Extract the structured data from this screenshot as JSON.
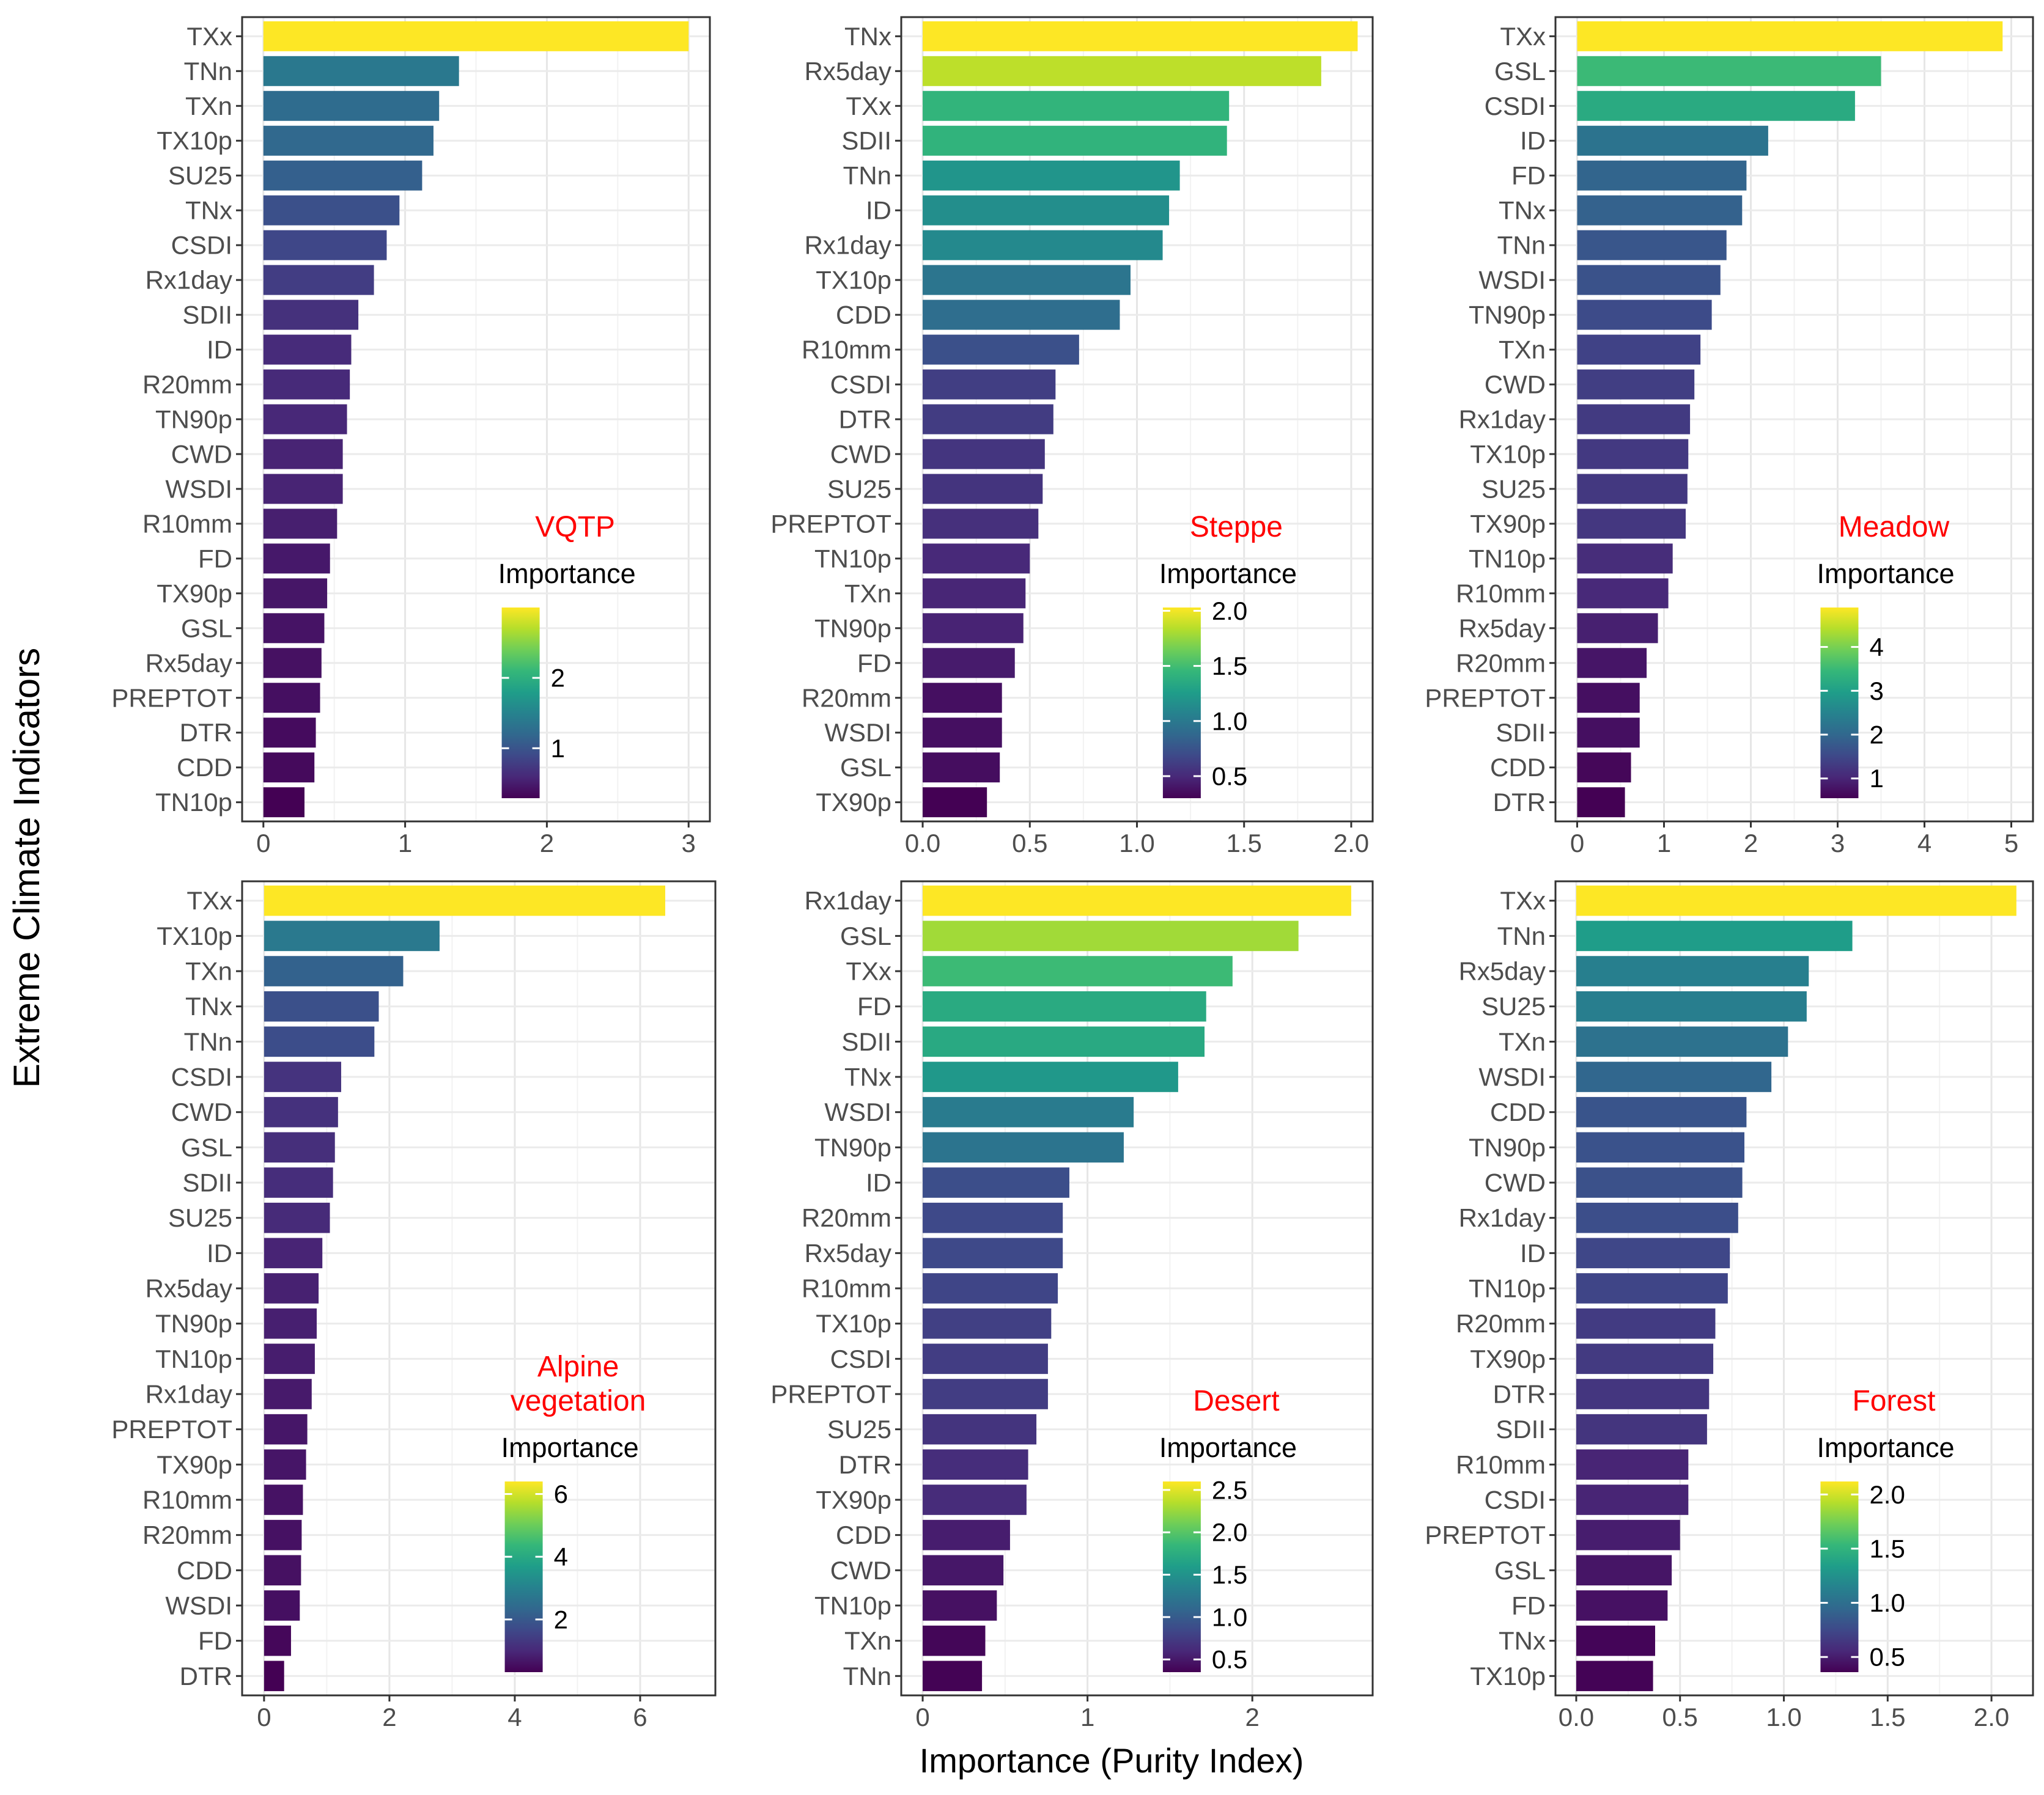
{
  "figure": {
    "y_axis_title": "Extreme Climate Indicators",
    "x_axis_title": "Importance (Purity Index)"
  },
  "chart_data": [
    {
      "type": "bar",
      "orientation": "horizontal",
      "panel_title": [
        "VQTP"
      ],
      "legend_title": "Importance",
      "xlim": [
        -0.15,
        3.15
      ],
      "x_ticks": [
        0,
        1,
        2,
        3
      ],
      "x_tick_labels": [
        "0",
        "1",
        "2",
        "3"
      ],
      "color_range": [
        0.29,
        3.0
      ],
      "color_ticks": [
        1,
        2
      ],
      "color_tick_labels": [
        "1",
        "2"
      ],
      "categories": [
        "TXx",
        "TNn",
        "TXn",
        "TX10p",
        "SU25",
        "TNx",
        "CSDI",
        "Rx1day",
        "SDII",
        "ID",
        "R20mm",
        "TN90p",
        "CWD",
        "WSDI",
        "R10mm",
        "FD",
        "TX90p",
        "GSL",
        "Rx5day",
        "PREPTOT",
        "DTR",
        "CDD",
        "TN10p"
      ],
      "values": [
        3.0,
        1.38,
        1.24,
        1.2,
        1.12,
        0.96,
        0.87,
        0.78,
        0.67,
        0.62,
        0.61,
        0.59,
        0.56,
        0.56,
        0.52,
        0.47,
        0.45,
        0.43,
        0.41,
        0.4,
        0.37,
        0.36,
        0.29
      ]
    },
    {
      "type": "bar",
      "orientation": "horizontal",
      "panel_title": [
        "Steppe"
      ],
      "legend_title": "Importance",
      "xlim": [
        -0.1,
        2.1
      ],
      "x_ticks": [
        0,
        0.5,
        1.0,
        1.5,
        2.0
      ],
      "x_tick_labels": [
        "0.0",
        "0.5",
        "1.0",
        "1.5",
        "2.0"
      ],
      "color_range": [
        0.3,
        2.03
      ],
      "color_ticks": [
        0.5,
        1.0,
        1.5,
        2.0
      ],
      "color_tick_labels": [
        "0.5",
        "1.0",
        "1.5",
        "2.0"
      ],
      "categories": [
        "TNx",
        "Rx5day",
        "TXx",
        "SDII",
        "TNn",
        "ID",
        "Rx1day",
        "TX10p",
        "CDD",
        "R10mm",
        "CSDI",
        "DTR",
        "CWD",
        "SU25",
        "PREPTOT",
        "TN10p",
        "TXn",
        "TN90p",
        "FD",
        "R20mm",
        "WSDI",
        "GSL",
        "TX90p"
      ],
      "values": [
        2.03,
        1.86,
        1.43,
        1.42,
        1.2,
        1.15,
        1.12,
        0.97,
        0.92,
        0.73,
        0.62,
        0.61,
        0.57,
        0.56,
        0.54,
        0.5,
        0.48,
        0.47,
        0.43,
        0.37,
        0.37,
        0.36,
        0.3
      ]
    },
    {
      "type": "bar",
      "orientation": "horizontal",
      "panel_title": [
        "Meadow"
      ],
      "legend_title": "Importance",
      "xlim": [
        -0.25,
        5.25
      ],
      "x_ticks": [
        0,
        1,
        2,
        3,
        4,
        5
      ],
      "x_tick_labels": [
        "0",
        "1",
        "2",
        "3",
        "4",
        "5"
      ],
      "color_range": [
        0.55,
        4.9
      ],
      "color_ticks": [
        1,
        2,
        3,
        4
      ],
      "color_tick_labels": [
        "1",
        "2",
        "3",
        "4"
      ],
      "categories": [
        "TXx",
        "GSL",
        "CSDI",
        "ID",
        "FD",
        "TNx",
        "TNn",
        "WSDI",
        "TN90p",
        "TXn",
        "CWD",
        "Rx1day",
        "TX10p",
        "SU25",
        "TX90p",
        "TN10p",
        "R10mm",
        "Rx5day",
        "R20mm",
        "PREPTOT",
        "SDII",
        "CDD",
        "DTR"
      ],
      "values": [
        4.9,
        3.5,
        3.2,
        2.2,
        1.95,
        1.9,
        1.72,
        1.65,
        1.55,
        1.42,
        1.35,
        1.3,
        1.28,
        1.27,
        1.25,
        1.1,
        1.05,
        0.93,
        0.8,
        0.72,
        0.72,
        0.62,
        0.55
      ]
    },
    {
      "type": "bar",
      "orientation": "horizontal",
      "panel_title": [
        "Alpine",
        "vegetation"
      ],
      "legend_title": "Importance",
      "xlim": [
        -0.35,
        7.2
      ],
      "x_ticks": [
        0,
        2,
        4,
        6
      ],
      "x_tick_labels": [
        "0",
        "2",
        "4",
        "6"
      ],
      "color_range": [
        0.32,
        6.4
      ],
      "color_ticks": [
        2,
        4,
        6
      ],
      "color_tick_labels": [
        "2",
        "4",
        "6"
      ],
      "categories": [
        "TXx",
        "TX10p",
        "TXn",
        "TNx",
        "TNn",
        "CSDI",
        "CWD",
        "GSL",
        "SDII",
        "SU25",
        "ID",
        "Rx5day",
        "TN90p",
        "TN10p",
        "Rx1day",
        "PREPTOT",
        "TX90p",
        "R10mm",
        "R20mm",
        "CDD",
        "WSDI",
        "FD",
        "DTR"
      ],
      "values": [
        6.4,
        2.8,
        2.22,
        1.83,
        1.76,
        1.23,
        1.18,
        1.13,
        1.1,
        1.05,
        0.93,
        0.87,
        0.84,
        0.81,
        0.76,
        0.69,
        0.67,
        0.62,
        0.6,
        0.59,
        0.57,
        0.43,
        0.32
      ]
    },
    {
      "type": "bar",
      "orientation": "horizontal",
      "panel_title": [
        "Desert"
      ],
      "legend_title": "Importance",
      "xlim": [
        -0.13,
        2.73
      ],
      "x_ticks": [
        0,
        1,
        2
      ],
      "x_tick_labels": [
        "0",
        "1",
        "2"
      ],
      "color_range": [
        0.35,
        2.6
      ],
      "color_ticks": [
        0.5,
        1.0,
        1.5,
        2.0,
        2.5
      ],
      "color_tick_labels": [
        "0.5",
        "1.0",
        "1.5",
        "2.0",
        "2.5"
      ],
      "categories": [
        "Rx1day",
        "GSL",
        "TXx",
        "FD",
        "SDII",
        "TNx",
        "WSDI",
        "TN90p",
        "ID",
        "R20mm",
        "Rx5day",
        "R10mm",
        "TX10p",
        "CSDI",
        "PREPTOT",
        "SU25",
        "DTR",
        "TX90p",
        "CDD",
        "CWD",
        "TN10p",
        "TXn",
        "TNn"
      ],
      "values": [
        2.6,
        2.28,
        1.88,
        1.72,
        1.71,
        1.55,
        1.28,
        1.22,
        0.89,
        0.85,
        0.85,
        0.82,
        0.78,
        0.76,
        0.76,
        0.69,
        0.64,
        0.63,
        0.53,
        0.49,
        0.45,
        0.38,
        0.36
      ]
    },
    {
      "type": "bar",
      "orientation": "horizontal",
      "panel_title": [
        "Forest"
      ],
      "legend_title": "Importance",
      "xlim": [
        -0.1,
        2.2
      ],
      "x_ticks": [
        0,
        0.5,
        1.0,
        1.5,
        2.0
      ],
      "x_tick_labels": [
        "0.0",
        "0.5",
        "1.0",
        "1.5",
        "2.0"
      ],
      "color_range": [
        0.36,
        2.12
      ],
      "color_ticks": [
        0.5,
        1.0,
        1.5,
        2.0
      ],
      "color_tick_labels": [
        "0.5",
        "1.0",
        "1.5",
        "2.0"
      ],
      "categories": [
        "TXx",
        "TNn",
        "Rx5day",
        "SU25",
        "TXn",
        "WSDI",
        "CDD",
        "TN90p",
        "CWD",
        "Rx1day",
        "ID",
        "TN10p",
        "R20mm",
        "TX90p",
        "DTR",
        "SDII",
        "R10mm",
        "CSDI",
        "PREPTOT",
        "GSL",
        "FD",
        "TNx",
        "TX10p"
      ],
      "values": [
        2.12,
        1.33,
        1.12,
        1.11,
        1.02,
        0.94,
        0.82,
        0.81,
        0.8,
        0.78,
        0.74,
        0.73,
        0.67,
        0.66,
        0.64,
        0.63,
        0.54,
        0.54,
        0.5,
        0.46,
        0.44,
        0.38,
        0.37
      ]
    }
  ]
}
